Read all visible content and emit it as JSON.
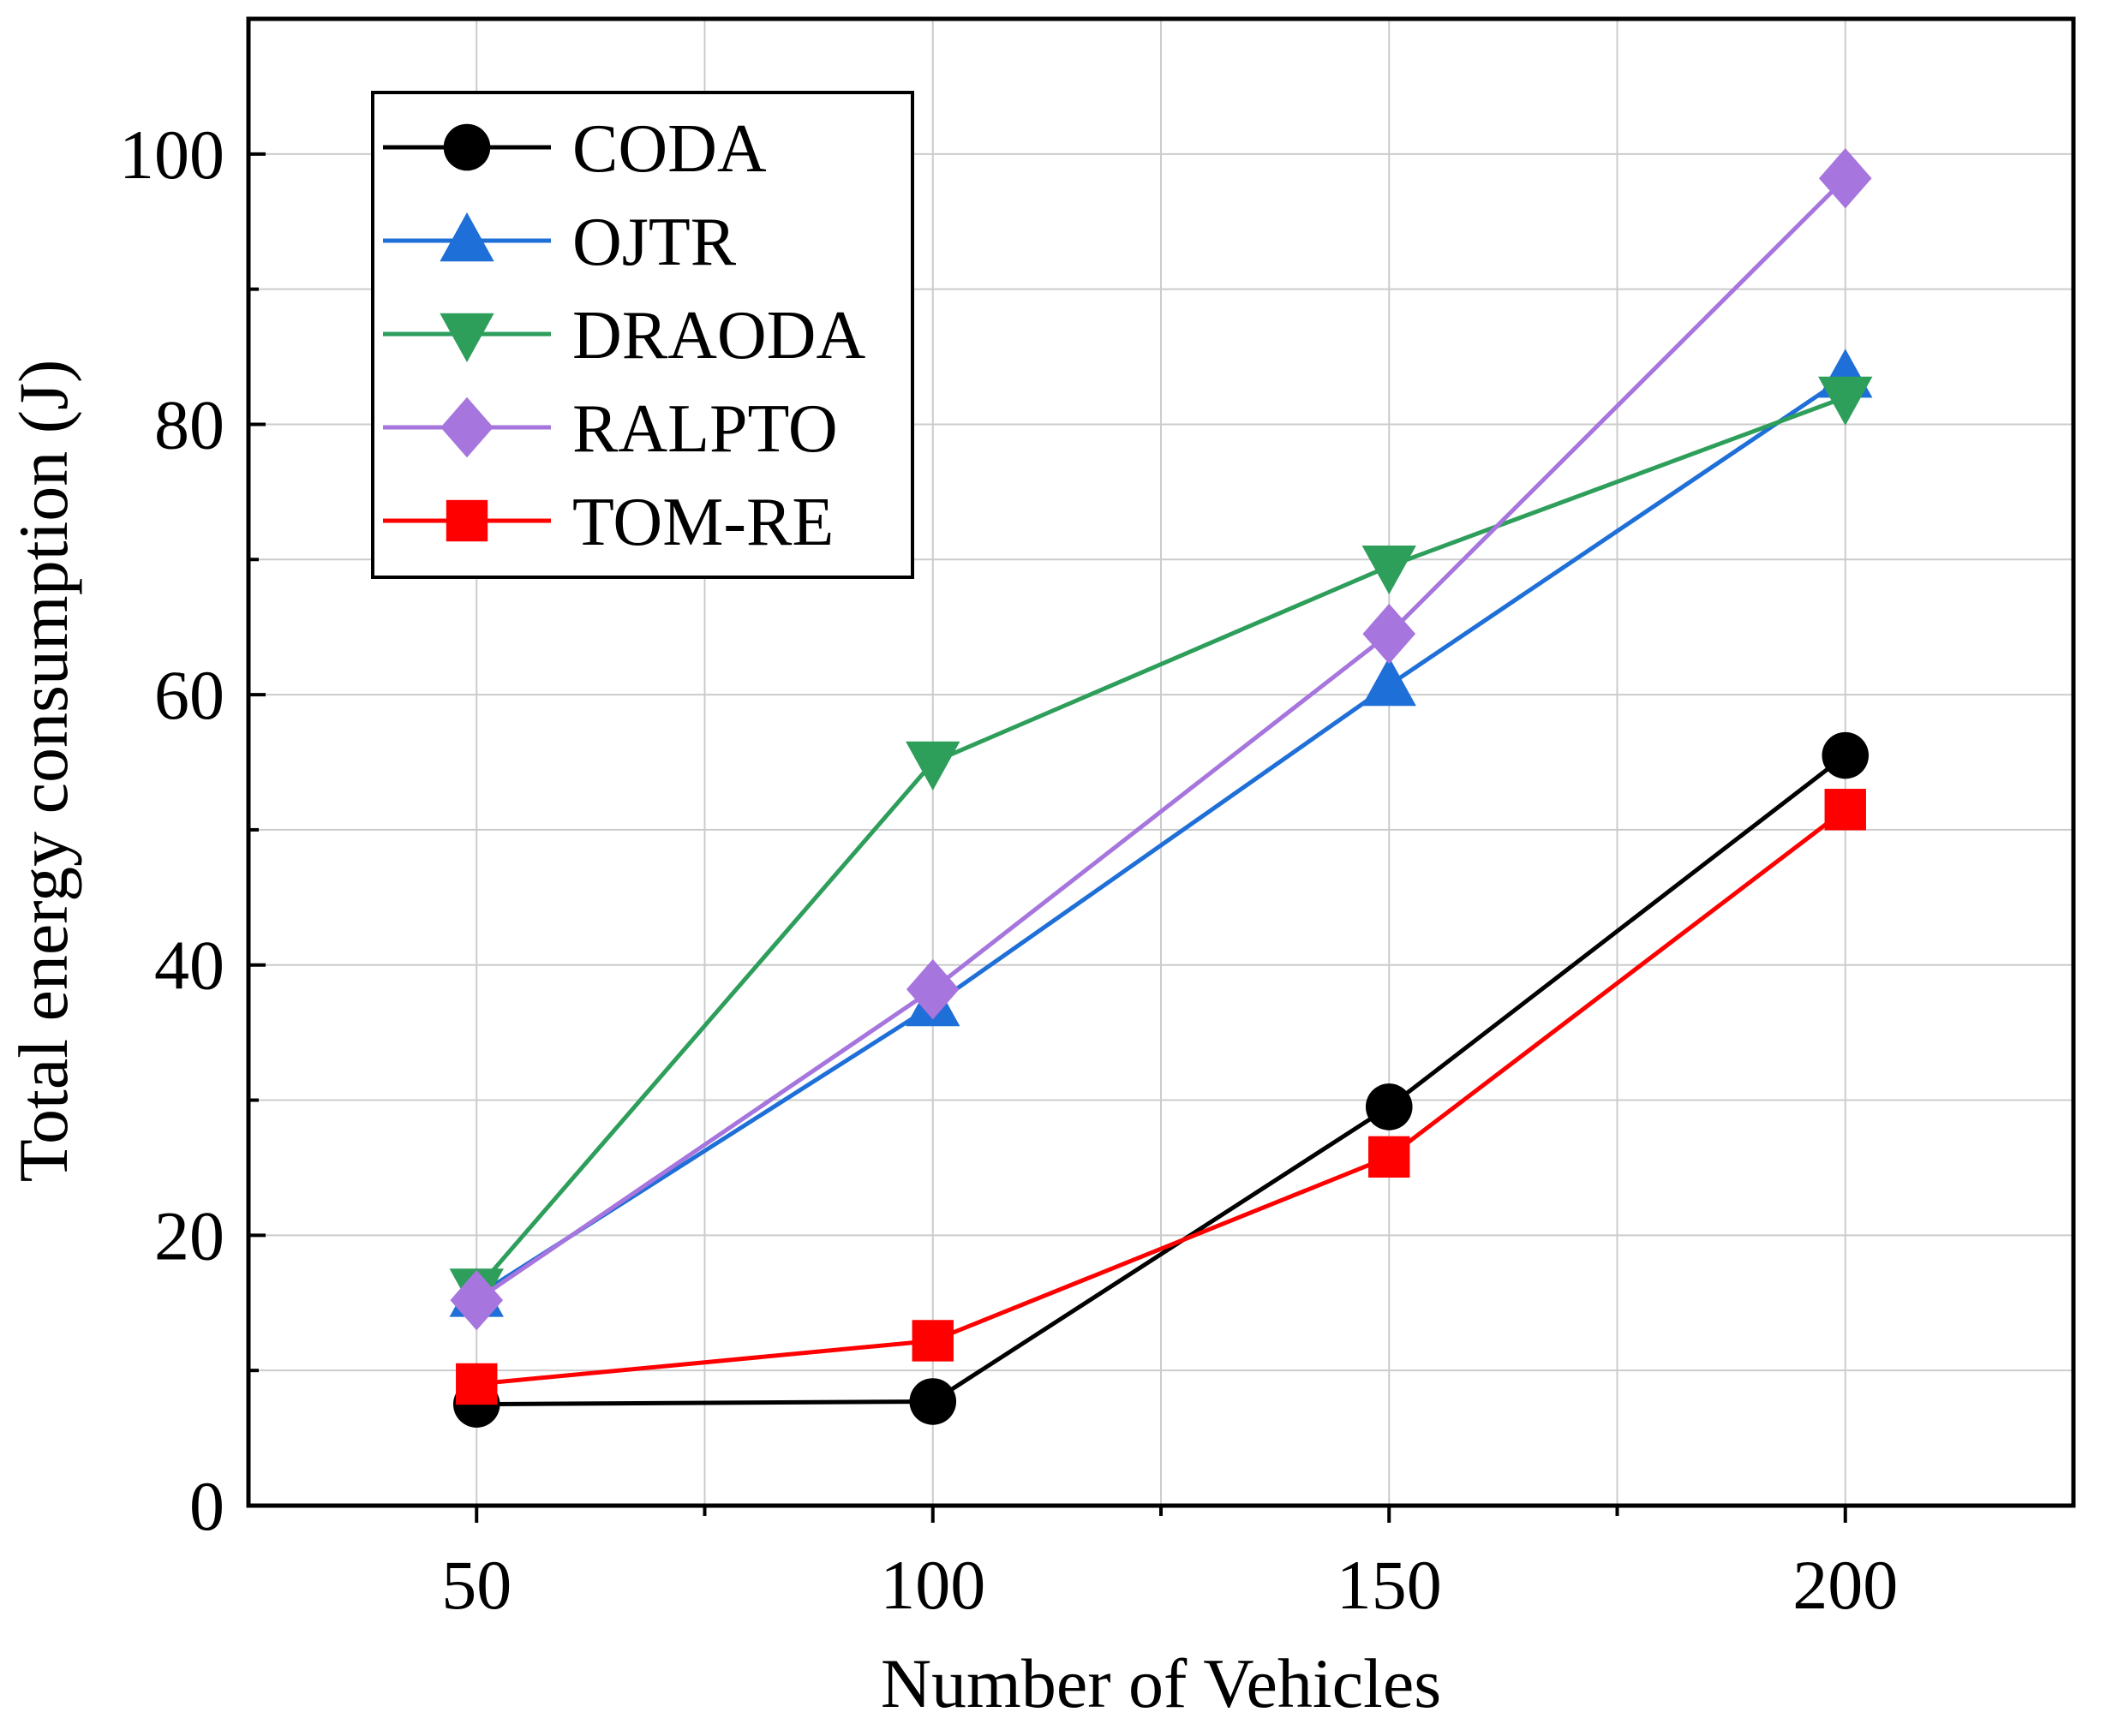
{
  "chart_data": {
    "type": "line",
    "title": "",
    "xlabel": "Number of Vehicles",
    "ylabel": "Total energy consumption (J)",
    "x": [
      50,
      100,
      150,
      200
    ],
    "xlim": [
      25,
      225
    ],
    "ylim": [
      0,
      110
    ],
    "xticks": [
      50,
      100,
      150,
      200
    ],
    "xtick_labels": [
      "50",
      "100",
      "150",
      "200"
    ],
    "yticks": [
      0,
      20,
      40,
      60,
      80,
      100
    ],
    "ytick_labels": [
      "0",
      "20",
      "40",
      "60",
      "80",
      "100"
    ],
    "grid": true,
    "legend_position": "top-left",
    "series": [
      {
        "name": "CODA",
        "color": "#000000",
        "marker": "circle",
        "values": [
          7.5,
          7.7,
          29.5,
          55.5
        ]
      },
      {
        "name": "OJTR",
        "color": "#1f6fd8",
        "marker": "triangle-up",
        "values": [
          15.5,
          37.0,
          60.7,
          83.5
        ]
      },
      {
        "name": "DRAODA",
        "color": "#2e9e5b",
        "marker": "triangle-down",
        "values": [
          16.0,
          55.0,
          69.5,
          82.0
        ]
      },
      {
        "name": "RALPTO",
        "color": "#a675dd",
        "marker": "diamond",
        "values": [
          15.2,
          38.2,
          64.5,
          98.2
        ]
      },
      {
        "name": "TOM-RE",
        "color": "#ff0000",
        "marker": "square",
        "values": [
          9.0,
          12.2,
          25.8,
          51.5
        ]
      }
    ]
  }
}
